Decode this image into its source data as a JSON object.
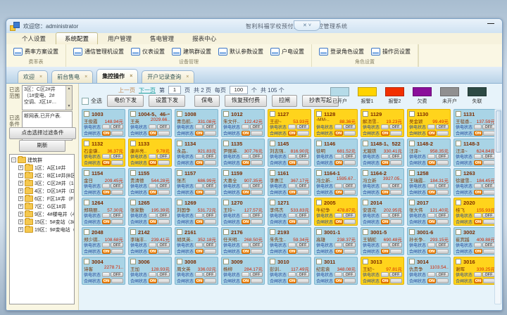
{
  "titlebar": {
    "greeting": "欢迎您：administrator",
    "title": "智利科福学校预付费配电监控管理系统",
    "pill_icons": "✕ ˅",
    "minimize_icon": "—"
  },
  "menu": {
    "items": [
      "个人设置",
      "系统配置",
      "用户管理",
      "售电管理",
      "报表中心"
    ],
    "active": "系统配置"
  },
  "ribbon": {
    "groups": [
      {
        "label": "费率表",
        "buttons": [
          "费率方案设置"
        ]
      },
      {
        "label": "设备管理",
        "buttons": [
          "通信管理机设置",
          "仪表设置",
          "建筑群设置",
          "默认参数设置",
          "户电设置"
        ]
      },
      {
        "label": "角色设置",
        "buttons": [
          "登录角色设置",
          "操作员设置"
        ]
      }
    ]
  },
  "tabs": {
    "close_icon": "×",
    "items": [
      {
        "label": "欢迎",
        "active": false
      },
      {
        "label": "前台售电",
        "active": false
      },
      {
        "label": "集控操作",
        "active": true
      },
      {
        "label": "开户记录查询",
        "active": false
      }
    ]
  },
  "sidebar": {
    "range_label": "已选范围",
    "range_lines": [
      "3区：C区2#井",
      "（1#变电、2#",
      "空调、J区1#…"
    ],
    "cond_label": "已选条件",
    "cond_text": "断网表,已开户表.",
    "filter_button": "点击选择过滤条件",
    "refresh_button": "刷新",
    "tree_root": "建筑群",
    "tree_items": [
      "1区：A区1#井",
      "2区：B区1#井(B区1#…",
      "3区：C区2#井（1#变…",
      "4区：D区1#井（D区1…",
      "6区：F区1#井（F区1#…",
      "7区：G区1#井",
      "9区：4#楼电井（4#楼…",
      "15区：5#变站（3#变…",
      "19区：9#变电站（2#…"
    ]
  },
  "pager": {
    "prev": "上一页",
    "next": "下一页",
    "page_prefix": "第",
    "page_value": "1",
    "page_suffix": "页",
    "total_pages": "共 2 页",
    "per_page_prefix": "每页",
    "per_page_value": "100",
    "per_page_suffix": "个",
    "total_items": "共 105 个"
  },
  "toolbar": {
    "select_all": "全选",
    "buttons": [
      "电价下发",
      "设置下发",
      "保电",
      "恢复预付费",
      "拉闸",
      "抄表写起"
    ]
  },
  "legend": {
    "items": [
      {
        "label": "已开户",
        "color": "#b5dbe8"
      },
      {
        "label": "报警1",
        "color": "#ffd400"
      },
      {
        "label": "报警2",
        "color": "#f23000"
      },
      {
        "label": "欠费",
        "color": "#8a0f9a"
      },
      {
        "label": "未开户",
        "color": "#909090"
      },
      {
        "label": "失联",
        "color": "#2d4a44"
      }
    ]
  },
  "cards": {
    "supply_label": "供电状态",
    "gate_label": "合闸状态",
    "off_label": "OFF",
    "on_label": "ON",
    "items": [
      {
        "id": "1003",
        "name": "王俊霞",
        "balance": "148.94元",
        "type": "ok"
      },
      {
        "id": "1004-5、46-一",
        "name": "王英",
        "balance": "2029.66..",
        "type": "ok"
      },
      {
        "id": "1008",
        "name": "青岛航..",
        "balance": "331.08元",
        "type": "ok"
      },
      {
        "id": "1012",
        "name": "朱文仟..",
        "balance": "122.42元",
        "type": "ok"
      },
      {
        "id": "1127",
        "name": "王迎~",
        "balance": "53.93元",
        "type": "warn"
      },
      {
        "id": "1128",
        "name": "-MM-..",
        "balance": "88.36元",
        "type": "warn"
      },
      {
        "id": "1129",
        "name": "解消雪..",
        "balance": "19.23元",
        "type": "warn"
      },
      {
        "id": "1130",
        "name": "吴金颖",
        "balance": "99.49元",
        "type": "warn"
      },
      {
        "id": "1131",
        "name": "王毯香..",
        "balance": "137.59元",
        "type": "ok"
      },
      {
        "id": "1132",
        "name": "石金骥..",
        "balance": "36.37元",
        "type": "warn"
      },
      {
        "id": "1133",
        "name": "康井亮..",
        "balance": "9.78元",
        "type": "warn"
      },
      {
        "id": "1134",
        "name": "永品..",
        "balance": "921.83元",
        "type": "ok"
      },
      {
        "id": "1135",
        "name": "尹丽英..",
        "balance": "307.76元",
        "type": "ok"
      },
      {
        "id": "1145",
        "name": "刘志强..",
        "balance": "816.90元",
        "type": "ok"
      },
      {
        "id": "1146",
        "name": "徐明",
        "balance": "681.52元",
        "type": "ok"
      },
      {
        "id": "1148-1、522",
        "name": "尤娥铁",
        "balance": "330.41元",
        "type": "ok"
      },
      {
        "id": "1148-2",
        "name": "汪泽~",
        "balance": "958.35元",
        "type": "ok"
      },
      {
        "id": "1148-3",
        "name": "汪泽~",
        "balance": "624.84元",
        "type": "ok"
      },
      {
        "id": "1154",
        "name": "金日",
        "balance": "209.45元",
        "type": "ok"
      },
      {
        "id": "1155",
        "name": "贵清德",
        "balance": "544.28元",
        "type": "ok"
      },
      {
        "id": "1157",
        "name": "张杰",
        "balance": "686.99元",
        "type": "ok"
      },
      {
        "id": "1159",
        "name": "大喜全",
        "balance": "907.35元",
        "type": "ok"
      },
      {
        "id": "1161",
        "name": "李惠江",
        "balance": "367.17元",
        "type": "ok"
      },
      {
        "id": "1164-1",
        "name": "冯立新..",
        "balance": "1595.67..",
        "type": "ok"
      },
      {
        "id": "1164-2",
        "name": "冯立新",
        "balance": "3927.05..",
        "type": "ok"
      },
      {
        "id": "1258",
        "name": "王瑞霞..",
        "balance": "184.31元",
        "type": "ok"
      },
      {
        "id": "1263",
        "name": "徐建雪..",
        "balance": "184.45元",
        "type": "ok"
      },
      {
        "id": "1264",
        "name": "郑晓丽..",
        "balance": "57.30元",
        "type": "ok"
      },
      {
        "id": "1265",
        "name": "张家勤",
        "balance": "195.39元",
        "type": "ok"
      },
      {
        "id": "1269",
        "name": "刘国争",
        "balance": "531.72元",
        "type": "ok"
      },
      {
        "id": "1270",
        "name": "王玲~",
        "balance": "127.57元",
        "type": "ok"
      },
      {
        "id": "1271",
        "name": "李伟杰",
        "balance": "533.83元",
        "type": "ok"
      },
      {
        "id": "2005",
        "name": "牛纪争",
        "balance": "478.87元",
        "type": "warn"
      },
      {
        "id": "2014",
        "name": "安恩花",
        "balance": "202.95元",
        "type": "ok"
      },
      {
        "id": "2017",
        "name": "张大伟",
        "balance": "121.40元",
        "type": "ok"
      },
      {
        "id": "2020",
        "name": "桂飞",
        "balance": "155.93元",
        "type": "warn"
      },
      {
        "id": "2048",
        "name": "郑少琪..",
        "balance": "108.68元",
        "type": "ok"
      },
      {
        "id": "2142",
        "name": "李瑞丰..",
        "balance": "239.41元",
        "type": "ok"
      },
      {
        "id": "2161",
        "name": "胡凤英..",
        "balance": "352.18元",
        "type": "ok"
      },
      {
        "id": "2176",
        "name": "任天明..",
        "balance": "268.50元",
        "type": "ok"
      },
      {
        "id": "2193",
        "name": "朱先生..",
        "balance": "59.34元",
        "type": "ok"
      },
      {
        "id": "3001-1",
        "name": "高雄",
        "balance": "238.37元",
        "type": "ok"
      },
      {
        "id": "3001-5",
        "name": "王辅舵",
        "balance": "690.48元",
        "type": "ok"
      },
      {
        "id": "3001-6",
        "name": "孙长争..",
        "balance": "293.15元",
        "type": "ok"
      },
      {
        "id": "3002",
        "name": "崔宾越",
        "balance": "409.88元",
        "type": "ok"
      },
      {
        "id": "3004",
        "name": "诗客",
        "balance": "2278.71..",
        "type": "ok"
      },
      {
        "id": "3006",
        "name": "王加",
        "balance": "128.93元",
        "type": "ok"
      },
      {
        "id": "3008",
        "name": "周文英",
        "balance": "336.02元",
        "type": "ok"
      },
      {
        "id": "3009",
        "name": "杨柳",
        "balance": "284.17元",
        "type": "ok"
      },
      {
        "id": "3010",
        "name": "彭训..",
        "balance": "117.49元",
        "type": "ok"
      },
      {
        "id": "3011",
        "name": "纪宏袁",
        "balance": "348.08元",
        "type": "ok"
      },
      {
        "id": "3013",
        "name": "王妃~",
        "balance": "97.81元",
        "type": "warn"
      },
      {
        "id": "3014",
        "name": "仇贵争",
        "balance": "1103.54..",
        "type": "ok"
      },
      {
        "id": "3016",
        "name": "谢晖",
        "balance": "339.25元",
        "type": "warn"
      }
    ]
  }
}
